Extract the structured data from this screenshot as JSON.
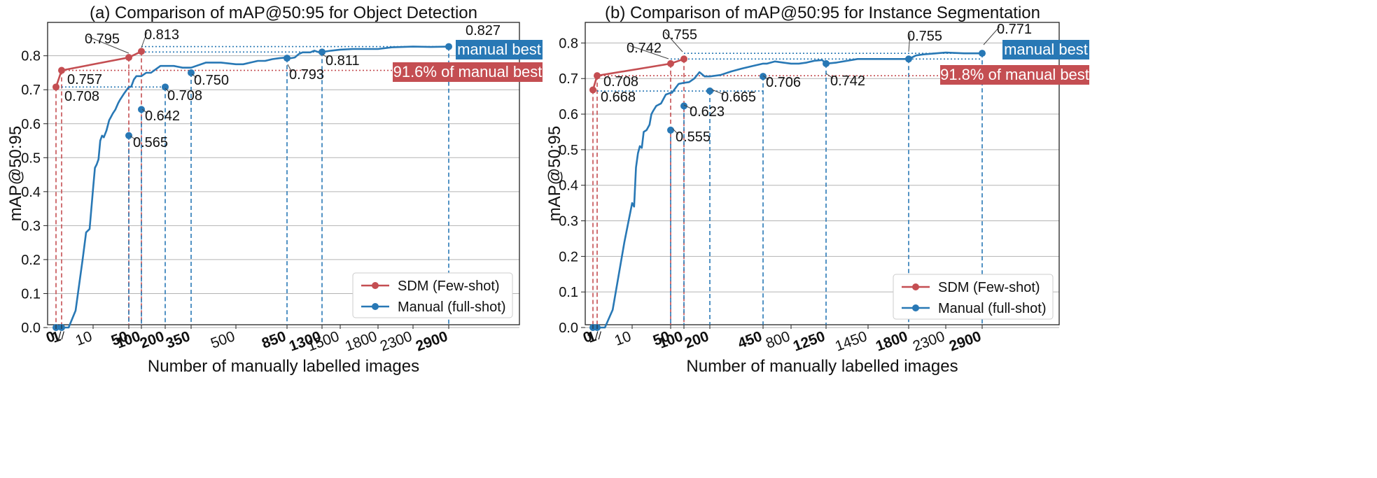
{
  "colors": {
    "sdm": "#c44e52",
    "manual": "#2878b5",
    "grid": "#b3b3b3"
  },
  "legend": {
    "sdm": "SDM (Few-shot)",
    "manual": "Manual (full-shot)"
  },
  "chart_data": [
    {
      "type": "line",
      "title": "(a) Comparison of mAP@50:95 for Object Detection",
      "xlabel": "Number of manually labelled images",
      "ylabel": "mAP@50:95",
      "ylim": [
        0,
        0.89
      ],
      "yticks": [
        "0.0",
        "0.1",
        "0.2",
        "0.3",
        "0.4",
        "0.5",
        "0.6",
        "0.7",
        "0.8"
      ],
      "xticks": [
        {
          "label": "0",
          "bold": true
        },
        {
          "label": "1",
          "bold": true
        },
        {
          "label": "10",
          "bold": false
        },
        {
          "label": "50",
          "bold": true
        },
        {
          "label": "100",
          "bold": true
        },
        {
          "label": "200",
          "bold": true
        },
        {
          "label": "350",
          "bold": true
        },
        {
          "label": "500",
          "bold": false
        },
        {
          "label": "850",
          "bold": true
        },
        {
          "label": "1300",
          "bold": true
        },
        {
          "label": "1500",
          "bold": false
        },
        {
          "label": "1800",
          "bold": false
        },
        {
          "label": "2300",
          "bold": false
        },
        {
          "label": "2900",
          "bold": true
        }
      ],
      "grid": true,
      "legend_position": "lower-right",
      "series": [
        {
          "name": "SDM (Few-shot)",
          "x": [
            0,
            1,
            50,
            100
          ],
          "y": [
            0.708,
            0.757,
            0.795,
            0.813
          ]
        },
        {
          "name": "Manual (full-shot)",
          "x": [
            0,
            1,
            2,
            3,
            5,
            7,
            8,
            9,
            10,
            12,
            14,
            16,
            18,
            20,
            22,
            25,
            28,
            30,
            32,
            35,
            38,
            40,
            45,
            50,
            55,
            60,
            70,
            80,
            100,
            120,
            140,
            160,
            180,
            200,
            250,
            300,
            350,
            400,
            450,
            500,
            550,
            600,
            650,
            700,
            750,
            800,
            850,
            900,
            950,
            1000,
            1050,
            1100,
            1150,
            1200,
            1250,
            1300,
            1400,
            1500,
            1600,
            1800,
            2000,
            2300,
            2600,
            2900
          ],
          "y": [
            0,
            0,
            0,
            0,
            0.05,
            0.2,
            0.28,
            0.29,
            0.41,
            0.47,
            0.48,
            0.495,
            0.55,
            0.565,
            0.56,
            0.58,
            0.61,
            0.62,
            0.63,
            0.642,
            0.66,
            0.67,
            0.69,
            0.708,
            0.708,
            0.71,
            0.73,
            0.74,
            0.74,
            0.75,
            0.75,
            0.76,
            0.77,
            0.77,
            0.77,
            0.765,
            0.765,
            0.78,
            0.78,
            0.775,
            0.775,
            0.78,
            0.785,
            0.785,
            0.79,
            0.793,
            0.795,
            0.793,
            0.795,
            0.805,
            0.81,
            0.81,
            0.81,
            0.815,
            0.811,
            0.811,
            0.815,
            0.818,
            0.82,
            0.82,
            0.825,
            0.827,
            0.826,
            0.827
          ]
        },
        {
          "name": "",
          "x": [
            0,
            1,
            50,
            100,
            200,
            350,
            850,
            1300,
            2900
          ],
          "y": [
            0,
            0,
            0.565,
            0.642,
            0.708,
            0.75,
            0.793,
            0.811,
            0.827
          ]
        }
      ],
      "annotations": [
        "0.795",
        "0.813",
        "0.757",
        "0.708",
        "0.642",
        "0.565",
        "0.708",
        "0.750",
        "0.793",
        "0.811",
        "0.827"
      ],
      "badges": [
        "manual best",
        "91.6% of manual best"
      ]
    },
    {
      "type": "line",
      "title": "(b) Comparison of mAP@50:95 for Instance Segmentation",
      "xlabel": "Number of manually labelled images",
      "ylabel": "mAP@50:95",
      "ylim": [
        0,
        0.85
      ],
      "yticks": [
        "0.0",
        "0.1",
        "0.2",
        "0.3",
        "0.4",
        "0.5",
        "0.6",
        "0.7",
        "0.8"
      ],
      "xticks": [
        {
          "label": "0",
          "bold": true
        },
        {
          "label": "1",
          "bold": true
        },
        {
          "label": "10",
          "bold": false
        },
        {
          "label": "50",
          "bold": true
        },
        {
          "label": "100",
          "bold": true
        },
        {
          "label": "200",
          "bold": true
        },
        {
          "label": "450",
          "bold": true
        },
        {
          "label": "800",
          "bold": false
        },
        {
          "label": "1250",
          "bold": true
        },
        {
          "label": "1450",
          "bold": false
        },
        {
          "label": "1800",
          "bold": true
        },
        {
          "label": "2300",
          "bold": false
        },
        {
          "label": "2900",
          "bold": true
        }
      ],
      "grid": true,
      "legend_position": "lower-right",
      "series": [
        {
          "name": "SDM (Few-shot)",
          "x": [
            0,
            1,
            50,
            100
          ],
          "y": [
            0.668,
            0.708,
            0.742,
            0.755
          ]
        },
        {
          "name": "Manual (full-shot)",
          "x": [
            0,
            1,
            2,
            3,
            5,
            8,
            10,
            12,
            14,
            16,
            18,
            20,
            22,
            25,
            28,
            30,
            32,
            35,
            40,
            45,
            50,
            55,
            60,
            70,
            80,
            100,
            120,
            140,
            160,
            180,
            200,
            250,
            300,
            350,
            400,
            450,
            500,
            600,
            700,
            800,
            900,
            1000,
            1100,
            1200,
            1250,
            1300,
            1400,
            1500,
            1600,
            1700,
            1800,
            1900,
            2000,
            2300,
            2600,
            2900
          ],
          "y": [
            0,
            0,
            0,
            0,
            0.05,
            0.24,
            0.35,
            0.34,
            0.45,
            0.49,
            0.51,
            0.505,
            0.55,
            0.555,
            0.57,
            0.6,
            0.61,
            0.623,
            0.63,
            0.655,
            0.66,
            0.66,
            0.665,
            0.675,
            0.685,
            0.688,
            0.69,
            0.7,
            0.718,
            0.706,
            0.706,
            0.71,
            0.72,
            0.728,
            0.735,
            0.742,
            0.742,
            0.748,
            0.745,
            0.742,
            0.742,
            0.745,
            0.75,
            0.752,
            0.742,
            0.745,
            0.755,
            0.755,
            0.755,
            0.755,
            0.755,
            0.765,
            0.768,
            0.773,
            0.771,
            0.771
          ]
        },
        {
          "name": "",
          "x": [
            0,
            1,
            50,
            100,
            200,
            450,
            1250,
            1800,
            2900
          ],
          "y": [
            0,
            0,
            0.555,
            0.623,
            0.665,
            0.706,
            0.742,
            0.755,
            0.771
          ]
        }
      ],
      "annotations": [
        "0.742",
        "0.755",
        "0.708",
        "0.668",
        "0.623",
        "0.555",
        "0.665",
        "0.706",
        "0.742",
        "0.755",
        "0.771"
      ],
      "badges": [
        "manual best",
        "91.8% of manual best"
      ]
    }
  ]
}
